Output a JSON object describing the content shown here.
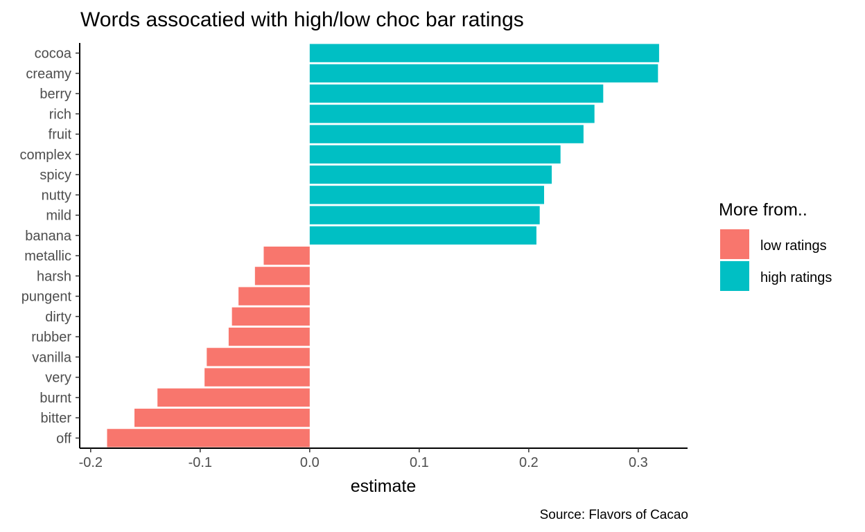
{
  "chart_data": {
    "type": "bar",
    "orientation": "horizontal",
    "title": "Words assocatied with high/low choc bar ratings",
    "xlabel": "estimate",
    "ylabel": "",
    "caption": "Source: Flavors of Cacao",
    "xlim": [
      -0.21,
      0.345
    ],
    "x_ticks": [
      -0.2,
      -0.1,
      0.0,
      0.1,
      0.2,
      0.3
    ],
    "x_tick_labels": [
      "-0.2",
      "-0.1",
      "0.0",
      "0.1",
      "0.2",
      "0.3"
    ],
    "grid": false,
    "legend": {
      "title": "More from..",
      "placement": "right",
      "entries": [
        {
          "label": "low ratings",
          "color": "#F8766D"
        },
        {
          "label": "high ratings",
          "color": "#00BFC4"
        }
      ]
    },
    "categories": [
      "cocoa",
      "creamy",
      "berry",
      "rich",
      "fruit",
      "complex",
      "spicy",
      "nutty",
      "mild",
      "banana",
      "metallic",
      "harsh",
      "pungent",
      "dirty",
      "rubber",
      "vanilla",
      "very",
      "burnt",
      "bitter",
      "off"
    ],
    "values": [
      0.319,
      0.318,
      0.268,
      0.26,
      0.25,
      0.229,
      0.221,
      0.214,
      0.21,
      0.207,
      -0.042,
      -0.05,
      -0.065,
      -0.071,
      -0.074,
      -0.094,
      -0.096,
      -0.139,
      -0.16,
      -0.185
    ],
    "groups": [
      "high ratings",
      "high ratings",
      "high ratings",
      "high ratings",
      "high ratings",
      "high ratings",
      "high ratings",
      "high ratings",
      "high ratings",
      "high ratings",
      "low ratings",
      "low ratings",
      "low ratings",
      "low ratings",
      "low ratings",
      "low ratings",
      "low ratings",
      "low ratings",
      "low ratings",
      "low ratings"
    ]
  }
}
